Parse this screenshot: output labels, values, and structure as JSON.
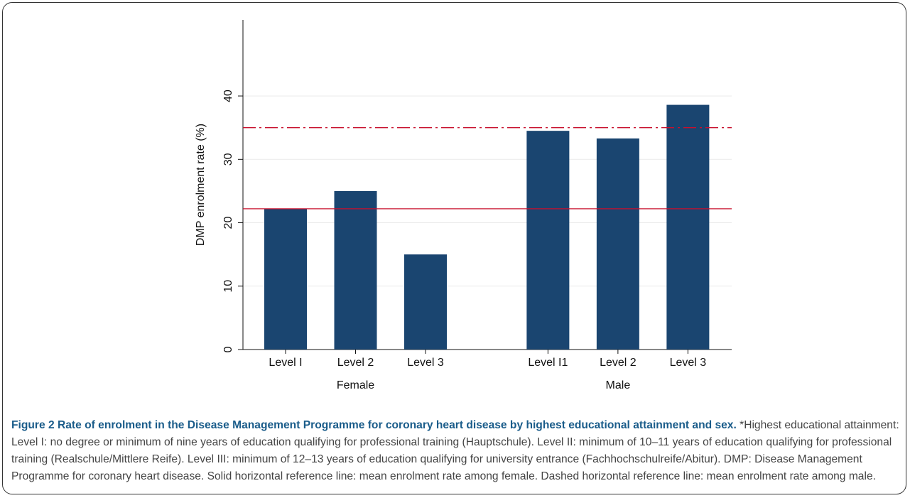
{
  "chart_data": {
    "type": "bar",
    "ylabel": "DMP enrolment rate (%)",
    "groups": [
      {
        "name": "Female",
        "categories": [
          "Level I",
          "Level 2",
          "Level 3"
        ],
        "values": [
          22.2,
          25,
          15
        ]
      },
      {
        "name": "Male",
        "categories": [
          "Level I1",
          "Level 2",
          "Level 3"
        ],
        "values": [
          34.5,
          33.3,
          38.6
        ]
      }
    ],
    "color": "#1a4570",
    "ylim": [
      0,
      52
    ],
    "yticks": [
      0,
      10,
      20,
      30,
      40
    ],
    "grid": true,
    "reference_lines": [
      {
        "value": 22.2,
        "style": "solid",
        "color": "#c8102e"
      },
      {
        "value": 35,
        "style": "dashdot",
        "color": "#c8102e"
      }
    ]
  },
  "caption": {
    "title": "Figure 2 Rate of enrolment in the Disease Management Programme for coronary heart disease by highest educational attainment and sex.",
    "text": " *Highest educational attainment: Level I: no degree or minimum of nine years of education qualifying for professional training (Hauptschule). Level II: minimum of 10–11 years of education qualifying for professional training (Realschule/Mittlere Reife). Level III: minimum of 12–13 years of education qualifying for university entrance (Fachhochschulreife/Abitur). DMP: Disease Management Programme for coronary heart disease. Solid horizontal reference line: mean enrolment rate among female. Dashed horizontal reference line: mean enrolment rate among male."
  }
}
